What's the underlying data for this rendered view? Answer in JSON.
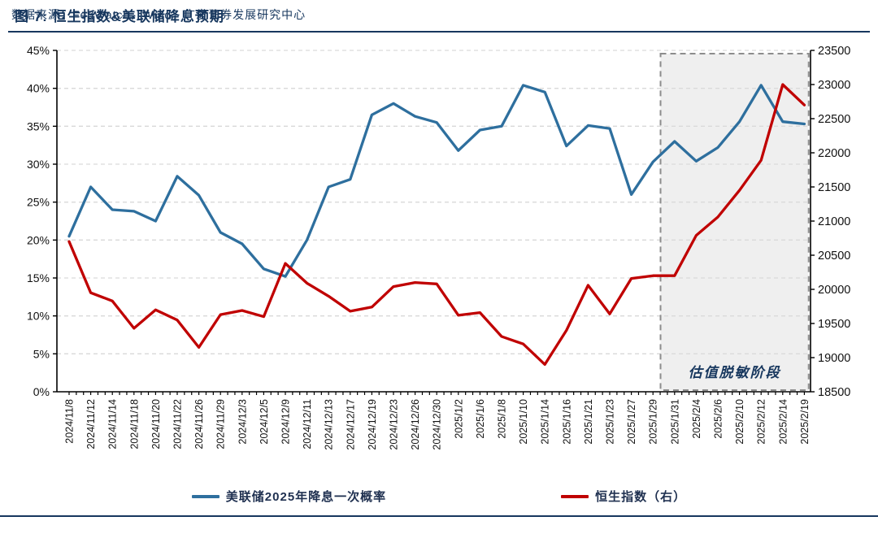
{
  "header": {
    "title": "图 7: 恒生指数&美联储降息预期"
  },
  "footer": {
    "source": "数据来源：FedWatch，Wind，广发证券发展研究中心"
  },
  "legend": [
    {
      "label": "美联储2025年降息一次概率",
      "color": "#2e6f9e"
    },
    {
      "label": "恒生指数（右）",
      "color": "#c00000"
    }
  ],
  "annotation": {
    "text": "估值脱敏阶段",
    "color": "#17375e"
  },
  "colors": {
    "fed_line": "#2e6f9e",
    "hsi_line": "#c00000",
    "grid": "#d9d9d9",
    "axis": "#000000",
    "highlight_fill": "#dcdcdc",
    "highlight_border": "#8c8c8c",
    "navy": "#17375e"
  },
  "chart_data": {
    "type": "line",
    "categories": [
      "2024/11/8",
      "2024/11/12",
      "2024/11/14",
      "2024/11/18",
      "2024/11/20",
      "2024/11/22",
      "2024/11/26",
      "2024/11/29",
      "2024/12/3",
      "2024/12/5",
      "2024/12/9",
      "2024/12/11",
      "2024/12/13",
      "2024/12/17",
      "2024/12/19",
      "2024/12/23",
      "2024/12/26",
      "2024/12/30",
      "2025/1/2",
      "2025/1/6",
      "2025/1/8",
      "2025/1/10",
      "2025/1/14",
      "2025/1/16",
      "2025/1/21",
      "2025/1/23",
      "2025/1/27",
      "2025/1/29",
      "2025/1/31",
      "2025/2/4",
      "2025/2/6",
      "2025/2/10",
      "2025/2/12",
      "2025/2/14",
      "2025/2/19"
    ],
    "series": [
      {
        "name": "美联储2025年降息一次概率",
        "axis": "left",
        "color": "#2e6f9e",
        "unit": "%",
        "values": [
          20.5,
          27.0,
          24.0,
          23.8,
          22.5,
          28.4,
          25.9,
          21.0,
          19.5,
          16.2,
          15.2,
          20.0,
          27.0,
          28.0,
          36.5,
          38.0,
          36.3,
          35.5,
          31.8,
          34.5,
          35.0,
          40.4,
          39.5,
          32.4,
          35.1,
          34.7,
          26.0,
          30.3,
          33.0,
          30.4,
          32.2,
          35.6,
          40.4,
          35.6,
          35.3
        ]
      },
      {
        "name": "恒生指数（右）",
        "axis": "right",
        "color": "#c00000",
        "unit": "index points",
        "values": [
          20700,
          19950,
          19830,
          19430,
          19700,
          19550,
          19150,
          19630,
          19690,
          19600,
          20380,
          20090,
          19900,
          19680,
          19740,
          20040,
          20100,
          20080,
          19620,
          19660,
          19310,
          19200,
          18900,
          19400,
          20060,
          19640,
          20160,
          20200,
          20200,
          20790,
          21060,
          21450,
          21890,
          23000,
          22700
        ]
      }
    ],
    "left_axis": {
      "min": 0,
      "max": 45,
      "step": 5,
      "tick_labels": [
        "45%",
        "40%",
        "35%",
        "30%",
        "25%",
        "20%",
        "15%",
        "10%",
        "5%",
        "0%"
      ]
    },
    "right_axis": {
      "min": 18500,
      "max": 23500,
      "step": 500,
      "tick_labels": [
        "23500",
        "23000",
        "22500",
        "22000",
        "21500",
        "21000",
        "20500",
        "20000",
        "19500",
        "19000",
        "18500"
      ]
    },
    "grid": "horizontal-dashed",
    "legend_position": "bottom",
    "highlight_region": {
      "label": "估值脱敏阶段",
      "from_index": 27.35,
      "to_index": 34.2
    }
  }
}
